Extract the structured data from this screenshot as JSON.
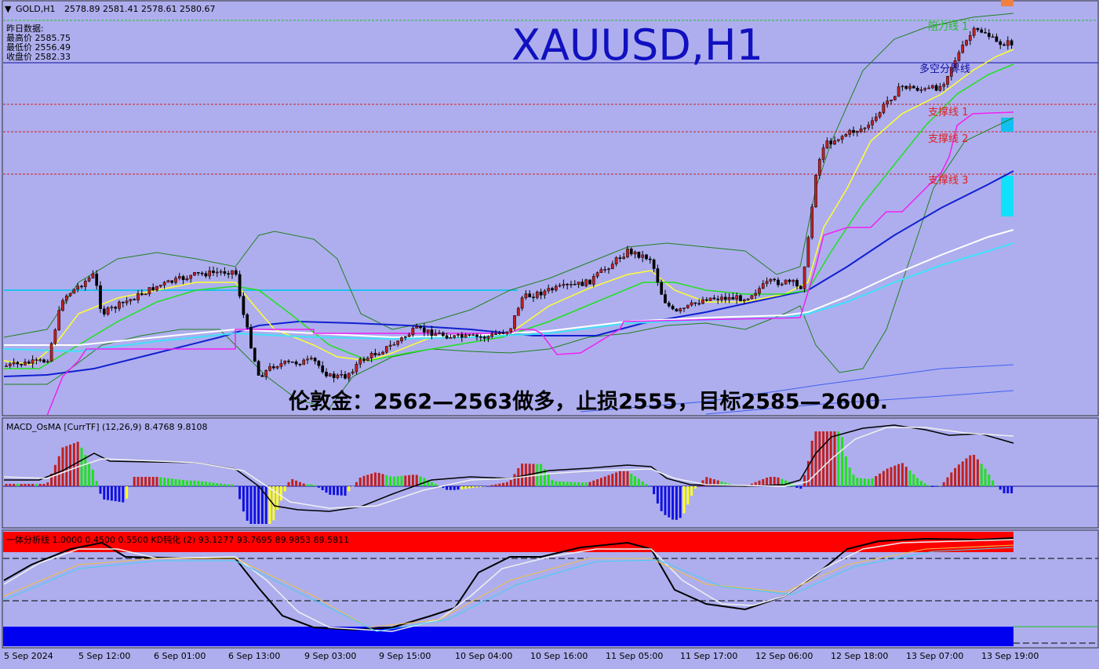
{
  "header": {
    "symbol": "GOLD,H1",
    "ohlc": "2578.89 2581.41 2578.61 2580.67"
  },
  "info": {
    "heading": "昨日数据:",
    "high": "最高价 2585.75",
    "low": "最低价 2556.49",
    "close": "收盘价 2582.33"
  },
  "title": "XAUUSD,H1",
  "levels": {
    "resistance1": "阻力线 1",
    "pivot": "多空分界线",
    "support1": "支撑线 1",
    "support2": "支撑线 2",
    "support3": "支撑线 3"
  },
  "annotation": "伦敦金：2562—2563做多，止损2555，目标2585—2600.",
  "macd_label": "MACD_OsMA [CurrTF] (12,26,9) 8.4768 9.8108",
  "kd_label": "一体分析线 1.0000 0.4500 0.5500  KD钝化 (2) 93.1277 93.7695 89.9853 89.5811",
  "x_labels": [
    "5 Sep 2024",
    "5 Sep 12:00",
    "6 Sep 01:00",
    "6 Sep 13:00",
    "9 Sep 03:00",
    "9 Sep 15:00",
    "10 Sep 04:00",
    "10 Sep 16:00",
    "11 Sep 05:00",
    "11 Sep 17:00",
    "12 Sep 06:00",
    "12 Sep 18:00",
    "13 Sep 07:00",
    "13 Sep 19:00"
  ]
}
